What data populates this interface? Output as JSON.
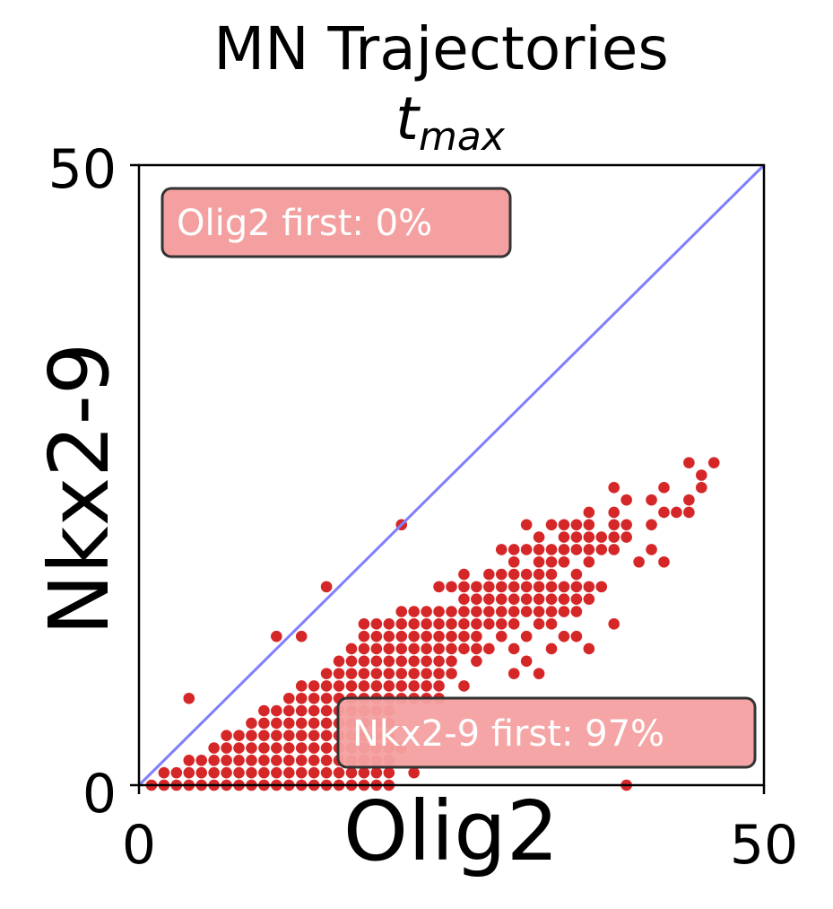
{
  "chart_data": {
    "type": "scatter",
    "title": "MN Trajectories",
    "subtitle_base": "t",
    "subtitle_sub": "max",
    "xlabel": "Olig2",
    "ylabel": "Nkx2-9",
    "xlim": [
      0,
      50
    ],
    "ylim": [
      0,
      50
    ],
    "xticks": [
      "0",
      "50"
    ],
    "yticks": [
      "0",
      "50"
    ],
    "grid": false,
    "point_color": "#d62728",
    "diagonal_color": "#7f7fff",
    "annotations": [
      {
        "text": "Olig2 first: 0%",
        "position": "top-left"
      },
      {
        "text": "Nkx2-9 first: 97%",
        "position": "bottom-right"
      }
    ],
    "annotation_box_color": "#f4a0a0",
    "points": [
      [
        1,
        0
      ],
      [
        2,
        0
      ],
      [
        3,
        0
      ],
      [
        4,
        0
      ],
      [
        5,
        0
      ],
      [
        6,
        0
      ],
      [
        7,
        0
      ],
      [
        8,
        0
      ],
      [
        9,
        0
      ],
      [
        10,
        0
      ],
      [
        11,
        0
      ],
      [
        12,
        0
      ],
      [
        13,
        0
      ],
      [
        14,
        0
      ],
      [
        15,
        0
      ],
      [
        16,
        0
      ],
      [
        17,
        0
      ],
      [
        18,
        0
      ],
      [
        19,
        0
      ],
      [
        20,
        0
      ],
      [
        39,
        0
      ],
      [
        2,
        1
      ],
      [
        3,
        1
      ],
      [
        4,
        1
      ],
      [
        5,
        1
      ],
      [
        6,
        1
      ],
      [
        7,
        1
      ],
      [
        8,
        1
      ],
      [
        9,
        1
      ],
      [
        10,
        1
      ],
      [
        11,
        1
      ],
      [
        12,
        1
      ],
      [
        13,
        1
      ],
      [
        14,
        1
      ],
      [
        15,
        1
      ],
      [
        16,
        1
      ],
      [
        17,
        1
      ],
      [
        18,
        1
      ],
      [
        19,
        1
      ],
      [
        20,
        1
      ],
      [
        22,
        1
      ],
      [
        4,
        2
      ],
      [
        5,
        2
      ],
      [
        6,
        2
      ],
      [
        7,
        2
      ],
      [
        8,
        2
      ],
      [
        9,
        2
      ],
      [
        10,
        2
      ],
      [
        11,
        2
      ],
      [
        12,
        2
      ],
      [
        13,
        2
      ],
      [
        14,
        2
      ],
      [
        15,
        2
      ],
      [
        16,
        2
      ],
      [
        17,
        2
      ],
      [
        18,
        2
      ],
      [
        19,
        2
      ],
      [
        20,
        2
      ],
      [
        6,
        3
      ],
      [
        7,
        3
      ],
      [
        8,
        3
      ],
      [
        9,
        3
      ],
      [
        10,
        3
      ],
      [
        11,
        3
      ],
      [
        12,
        3
      ],
      [
        13,
        3
      ],
      [
        14,
        3
      ],
      [
        15,
        3
      ],
      [
        16,
        3
      ],
      [
        17,
        3
      ],
      [
        18,
        3
      ],
      [
        19,
        3
      ],
      [
        20,
        3
      ],
      [
        21,
        3
      ],
      [
        7,
        4
      ],
      [
        8,
        4
      ],
      [
        9,
        4
      ],
      [
        10,
        4
      ],
      [
        11,
        4
      ],
      [
        12,
        4
      ],
      [
        13,
        4
      ],
      [
        14,
        4
      ],
      [
        15,
        4
      ],
      [
        16,
        4
      ],
      [
        17,
        4
      ],
      [
        18,
        4
      ],
      [
        19,
        4
      ],
      [
        20,
        4
      ],
      [
        9,
        5
      ],
      [
        10,
        5
      ],
      [
        11,
        5
      ],
      [
        12,
        5
      ],
      [
        13,
        5
      ],
      [
        14,
        5
      ],
      [
        15,
        5
      ],
      [
        16,
        5
      ],
      [
        17,
        5
      ],
      [
        18,
        5
      ],
      [
        19,
        5
      ],
      [
        20,
        5
      ],
      [
        10,
        6
      ],
      [
        11,
        6
      ],
      [
        12,
        6
      ],
      [
        13,
        6
      ],
      [
        14,
        6
      ],
      [
        15,
        6
      ],
      [
        16,
        6
      ],
      [
        17,
        6
      ],
      [
        18,
        6
      ],
      [
        19,
        6
      ],
      [
        20,
        6
      ],
      [
        4,
        7
      ],
      [
        12,
        7
      ],
      [
        13,
        7
      ],
      [
        14,
        7
      ],
      [
        15,
        7
      ],
      [
        16,
        7
      ],
      [
        17,
        7
      ],
      [
        18,
        7
      ],
      [
        19,
        7
      ],
      [
        20,
        7
      ],
      [
        21,
        7
      ],
      [
        22,
        7
      ],
      [
        23,
        7
      ],
      [
        24,
        7
      ],
      [
        13,
        8
      ],
      [
        14,
        8
      ],
      [
        15,
        8
      ],
      [
        16,
        8
      ],
      [
        17,
        8
      ],
      [
        18,
        8
      ],
      [
        19,
        8
      ],
      [
        20,
        8
      ],
      [
        21,
        8
      ],
      [
        22,
        8
      ],
      [
        23,
        8
      ],
      [
        24,
        8
      ],
      [
        26,
        8
      ],
      [
        15,
        9
      ],
      [
        16,
        9
      ],
      [
        17,
        9
      ],
      [
        18,
        9
      ],
      [
        19,
        9
      ],
      [
        20,
        9
      ],
      [
        21,
        9
      ],
      [
        22,
        9
      ],
      [
        23,
        9
      ],
      [
        24,
        9
      ],
      [
        25,
        9
      ],
      [
        30,
        9
      ],
      [
        32,
        9
      ],
      [
        16,
        10
      ],
      [
        17,
        10
      ],
      [
        18,
        10
      ],
      [
        19,
        10
      ],
      [
        20,
        10
      ],
      [
        21,
        10
      ],
      [
        22,
        10
      ],
      [
        23,
        10
      ],
      [
        24,
        10
      ],
      [
        25,
        10
      ],
      [
        27,
        10
      ],
      [
        31,
        10
      ],
      [
        17,
        11
      ],
      [
        18,
        11
      ],
      [
        19,
        11
      ],
      [
        20,
        11
      ],
      [
        21,
        11
      ],
      [
        22,
        11
      ],
      [
        23,
        11
      ],
      [
        24,
        11
      ],
      [
        25,
        11
      ],
      [
        26,
        11
      ],
      [
        27,
        11
      ],
      [
        28,
        11
      ],
      [
        30,
        11
      ],
      [
        33,
        11
      ],
      [
        36,
        11
      ],
      [
        11,
        12
      ],
      [
        13,
        12
      ],
      [
        18,
        12
      ],
      [
        19,
        12
      ],
      [
        20,
        12
      ],
      [
        21,
        12
      ],
      [
        22,
        12
      ],
      [
        23,
        12
      ],
      [
        24,
        12
      ],
      [
        25,
        12
      ],
      [
        26,
        12
      ],
      [
        27,
        12
      ],
      [
        29,
        12
      ],
      [
        31,
        12
      ],
      [
        34,
        12
      ],
      [
        35,
        12
      ],
      [
        18,
        13
      ],
      [
        19,
        13
      ],
      [
        20,
        13
      ],
      [
        21,
        13
      ],
      [
        22,
        13
      ],
      [
        23,
        13
      ],
      [
        24,
        13
      ],
      [
        25,
        13
      ],
      [
        26,
        13
      ],
      [
        27,
        13
      ],
      [
        28,
        13
      ],
      [
        29,
        13
      ],
      [
        30,
        13
      ],
      [
        32,
        13
      ],
      [
        33,
        13
      ],
      [
        38,
        13
      ],
      [
        21,
        14
      ],
      [
        22,
        14
      ],
      [
        23,
        14
      ],
      [
        24,
        14
      ],
      [
        25,
        14
      ],
      [
        26,
        14
      ],
      [
        27,
        14
      ],
      [
        28,
        14
      ],
      [
        29,
        14
      ],
      [
        30,
        14
      ],
      [
        31,
        14
      ],
      [
        32,
        14
      ],
      [
        33,
        14
      ],
      [
        34,
        14
      ],
      [
        35,
        14
      ],
      [
        15,
        16
      ],
      [
        24,
        16
      ],
      [
        25,
        16
      ],
      [
        26,
        16
      ],
      [
        27,
        16
      ],
      [
        28,
        16
      ],
      [
        29,
        16
      ],
      [
        30,
        16
      ],
      [
        31,
        16
      ],
      [
        32,
        16
      ],
      [
        33,
        16
      ],
      [
        34,
        16
      ],
      [
        35,
        16
      ],
      [
        36,
        16
      ],
      [
        37,
        16
      ],
      [
        26,
        15
      ],
      [
        27,
        15
      ],
      [
        28,
        15
      ],
      [
        29,
        15
      ],
      [
        30,
        15
      ],
      [
        31,
        15
      ],
      [
        32,
        15
      ],
      [
        33,
        15
      ],
      [
        34,
        15
      ],
      [
        35,
        15
      ],
      [
        36,
        15
      ],
      [
        26,
        17
      ],
      [
        28,
        17
      ],
      [
        29,
        17
      ],
      [
        30,
        17
      ],
      [
        31,
        17
      ],
      [
        32,
        17
      ],
      [
        33,
        17
      ],
      [
        35,
        17
      ],
      [
        30,
        18
      ],
      [
        32,
        18
      ],
      [
        33,
        18
      ],
      [
        34,
        18
      ],
      [
        36,
        18
      ],
      [
        40,
        18
      ],
      [
        42,
        18
      ],
      [
        29,
        19
      ],
      [
        30,
        19
      ],
      [
        31,
        19
      ],
      [
        32,
        19
      ],
      [
        33,
        19
      ],
      [
        34,
        19
      ],
      [
        35,
        19
      ],
      [
        36,
        19
      ],
      [
        37,
        19
      ],
      [
        38,
        19
      ],
      [
        41,
        19
      ],
      [
        21,
        21
      ],
      [
        32,
        20
      ],
      [
        34,
        20
      ],
      [
        35,
        20
      ],
      [
        36,
        20
      ],
      [
        37,
        20
      ],
      [
        38,
        20
      ],
      [
        39,
        20
      ],
      [
        31,
        21
      ],
      [
        33,
        21
      ],
      [
        34,
        21
      ],
      [
        35,
        21
      ],
      [
        36,
        21
      ],
      [
        38,
        21
      ],
      [
        39,
        21
      ],
      [
        41,
        21
      ],
      [
        36,
        22
      ],
      [
        38,
        22
      ],
      [
        42,
        22
      ],
      [
        43,
        22
      ],
      [
        44,
        22
      ],
      [
        39,
        23
      ],
      [
        41,
        23
      ],
      [
        44,
        23
      ],
      [
        38,
        24
      ],
      [
        42,
        24
      ],
      [
        45,
        24
      ],
      [
        45,
        25
      ],
      [
        44,
        26
      ],
      [
        46,
        26
      ]
    ]
  }
}
